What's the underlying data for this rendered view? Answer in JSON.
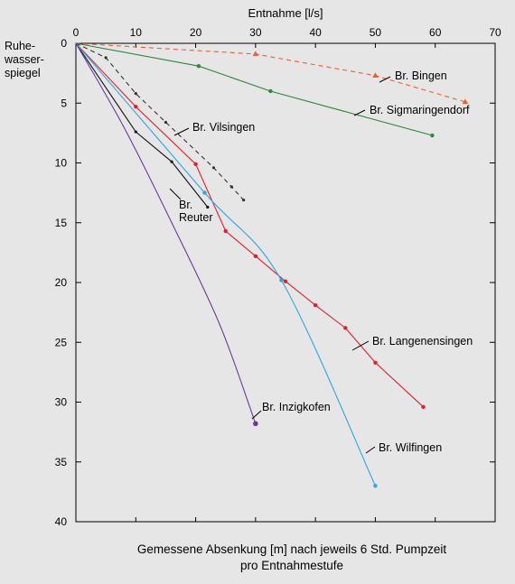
{
  "chart_data": {
    "type": "line",
    "xlabel": "Entnahme [l/s]",
    "ylabel_lines": [
      "Ruhe-",
      "wasser-",
      "spiegel"
    ],
    "caption_lines": [
      "Gemessene Absenkung [m] nach jeweils 6 Std. Pumpzeit",
      "pro Entnahmestufe"
    ],
    "xlim": [
      0,
      70
    ],
    "ylim": [
      0,
      40
    ],
    "y_inverted": true,
    "x_ticks": [
      "0",
      "10",
      "20",
      "30",
      "40",
      "50",
      "60",
      "70"
    ],
    "y_ticks": [
      "0",
      "5",
      "10",
      "15",
      "20",
      "25",
      "30",
      "35",
      "40"
    ],
    "grid": false,
    "series": [
      {
        "name": "Br. Bingen",
        "color": "#e8602c",
        "dash": "dashed",
        "marker": "triangle",
        "points": [
          [
            0,
            0
          ],
          [
            30,
            0.9
          ],
          [
            50,
            2.7
          ],
          [
            65,
            4.9
          ]
        ]
      },
      {
        "name": "Br. Sigmaringendorf",
        "color": "#2a8a3a",
        "dash": "solid",
        "marker": "dot",
        "points": [
          [
            0,
            0
          ],
          [
            20.5,
            1.9
          ],
          [
            32.5,
            4.0
          ],
          [
            59.5,
            7.7
          ]
        ]
      },
      {
        "name": "Br. Vilsingen",
        "color": "#333333",
        "dash": "dashed",
        "marker": "dot",
        "points": [
          [
            0,
            0
          ],
          [
            5,
            1.2
          ],
          [
            10,
            4.2
          ],
          [
            15,
            6.6
          ],
          [
            23,
            10.4
          ],
          [
            26,
            12.0
          ],
          [
            28,
            13.1
          ]
        ]
      },
      {
        "name": "Br. Reuter",
        "color": "#111111",
        "dash": "solid",
        "marker": "dot",
        "points": [
          [
            0,
            0
          ],
          [
            10,
            7.4
          ],
          [
            16,
            9.9
          ],
          [
            22,
            13.7
          ]
        ]
      },
      {
        "name": "Br. Langenensingen",
        "color": "#e0202a",
        "dash": "solid",
        "marker": "dot",
        "points": [
          [
            0,
            0
          ],
          [
            10,
            5.3
          ],
          [
            20,
            10.1
          ],
          [
            25,
            15.7
          ],
          [
            30,
            17.8
          ],
          [
            35,
            19.9
          ],
          [
            40,
            21.9
          ],
          [
            45,
            23.8
          ],
          [
            50,
            26.7
          ],
          [
            58,
            30.4
          ]
        ]
      },
      {
        "name": "Br. Wilfingen",
        "color": "#2aa8e0",
        "dash": "solid",
        "marker": "dot",
        "smooth": true,
        "points": [
          [
            0,
            0
          ],
          [
            21.5,
            12.5
          ],
          [
            34.3,
            19.8
          ],
          [
            50,
            37
          ]
        ]
      },
      {
        "name": "Br. Inzigkofen",
        "color": "#6a3a9a",
        "dash": "solid",
        "marker": "dot",
        "smooth": true,
        "points": [
          [
            0,
            0
          ],
          [
            8,
            7
          ],
          [
            16,
            15
          ],
          [
            24,
            23.5
          ],
          [
            30,
            31.8
          ]
        ]
      }
    ],
    "series_labels": [
      "Br. Bingen",
      "Br. Sigmaringendorf",
      "Br. Vilsingen",
      "Br. Reuter",
      "Br. Langenensingen",
      "Br. Wilfingen",
      "Br. Inzigkofen"
    ]
  }
}
